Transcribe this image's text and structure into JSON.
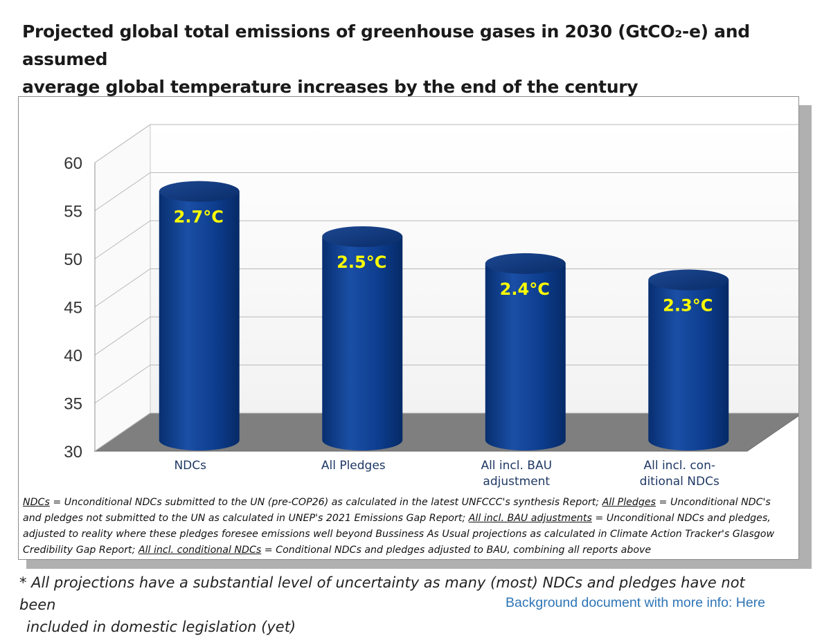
{
  "title": {
    "line1": "Projected global total emissions of greenhouse gases in 2030 (GtCO₂-e) and assumed",
    "line2": "average global temperature increases by the end of the century"
  },
  "chart_data": {
    "type": "bar",
    "categories": [
      [
        "NDCs"
      ],
      [
        "All Pledges"
      ],
      [
        "All incl. BAU",
        "adjustment"
      ],
      [
        "All incl. con-",
        "ditional NDCs"
      ]
    ],
    "values": [
      56.5,
      51.8,
      49.0,
      47.3
    ],
    "data_labels": [
      "2.7°C",
      "2.5°C",
      "2.4°C",
      "2.3°C"
    ],
    "yticks": [
      30,
      35,
      40,
      45,
      50,
      55,
      60
    ],
    "ylim": [
      30,
      60
    ],
    "grid": true,
    "bar_color": "#0a3c8c",
    "label_color": "#ffff00"
  },
  "footnote": [
    {
      "text": "NDCs",
      "u": true
    },
    {
      "text": " = Unconditional NDCs submitted to the UN (pre-COP26) as calculated in the latest UNFCCC's synthesis Report; ",
      "u": false
    },
    {
      "text": "All Pledges",
      "u": true
    },
    {
      "text": " = Unconditional NDC's and pledges not submitted to the UN as calculated in UNEP's 2021 Emissions Gap Report; ",
      "u": false
    },
    {
      "text": "All incl. BAU adjustments",
      "u": true
    },
    {
      "text": " = Unconditional NDCs and pledges, adjusted to reality where these pledges foresee emissions well beyond Bussiness As Usual projections as calculated in Climate Action Tracker's Glasgow Credibility Gap Report; ",
      "u": false
    },
    {
      "text": "All incl. conditional NDCs",
      "u": true
    },
    {
      "text": " = Conditional NDCs and pledges adjusted to BAU, combining all reports above",
      "u": false
    }
  ],
  "disclaimer": {
    "line1": "* All projections have a substantial level of uncertainty as many (most) NDCs and pledges have not been",
    "line2": "included in domestic legislation (yet)"
  },
  "background_link": "Background document with more info: Here"
}
